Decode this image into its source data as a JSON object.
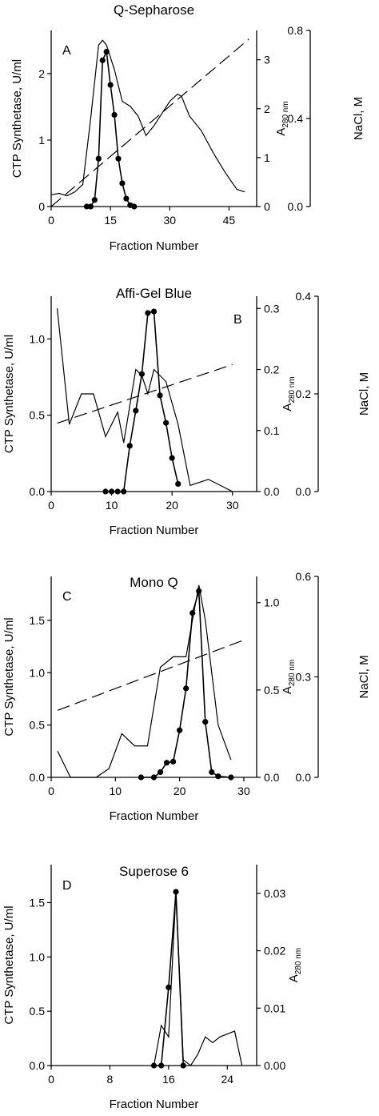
{
  "figure": {
    "panels": [
      "Q-Sepharose",
      "Affi-Gel Blue",
      "Mono Q",
      "Superose 6"
    ]
  },
  "chart_data": [
    {
      "type": "line",
      "panel_label": "A",
      "title": "Q-Sepharose",
      "xlabel": "Fraction Number",
      "ylabel": "CTP Synthetase, U/ml",
      "y2label_main": "A",
      "y2label_sub": "280 nm",
      "y3label": "NaCl, M",
      "xlim": [
        0,
        52
      ],
      "ylim": [
        0,
        2.65
      ],
      "y2lim": [
        0,
        3.6
      ],
      "y3lim": [
        0,
        0.8
      ],
      "xticks": [
        0,
        15,
        30,
        45
      ],
      "yticks": [
        0,
        1,
        2
      ],
      "y2ticks": [
        0,
        1,
        2,
        3
      ],
      "y3ticks": [
        "0.0",
        "0.4",
        "0.8"
      ],
      "grid": false,
      "series": [
        {
          "axis": "y",
          "style": "line-markers",
          "x": [
            9,
            10,
            11,
            12,
            13,
            14,
            15,
            16,
            17,
            18,
            19,
            20,
            21
          ],
          "y": [
            0,
            0,
            0.1,
            0.72,
            2.2,
            2.33,
            1.83,
            1.38,
            0.72,
            0.35,
            0.12,
            0.02,
            0
          ]
        },
        {
          "axis": "y2",
          "style": "solid",
          "x": [
            0,
            2,
            4,
            6,
            8,
            10,
            12,
            13,
            14,
            16,
            18,
            20,
            22,
            24,
            26,
            28,
            30,
            32,
            33,
            35,
            38,
            41,
            44,
            47,
            49
          ],
          "y": [
            0.24,
            0.27,
            0.22,
            0.3,
            0.45,
            1.8,
            3.3,
            3.4,
            3.3,
            2.8,
            2.15,
            2.05,
            1.85,
            1.45,
            1.65,
            1.9,
            2.15,
            2.3,
            2.25,
            1.85,
            1.55,
            1.1,
            0.7,
            0.35,
            0.3
          ]
        },
        {
          "axis": "y3",
          "style": "dashed",
          "x": [
            0,
            50
          ],
          "y": [
            0.0,
            0.76
          ]
        }
      ]
    },
    {
      "type": "line",
      "panel_label": "B",
      "title": "Affi-Gel Blue",
      "xlabel": "Fraction Number",
      "ylabel": "CTP Synthetase, U/ml",
      "y2label_main": "A",
      "y2label_sub": "280 nm",
      "y3label": "NaCl, M",
      "xlim": [
        0,
        34
      ],
      "ylim": [
        0,
        1.28
      ],
      "y2lim": [
        0,
        0.32
      ],
      "y3lim": [
        0,
        0.4
      ],
      "xticks": [
        0,
        10,
        20,
        30
      ],
      "yticks": [
        "0.0",
        "0.5",
        "1.0"
      ],
      "y2ticks": [
        "0.0",
        "0.1",
        "0.2",
        "0.3"
      ],
      "y3ticks": [
        "0.0",
        "0.2",
        "0.4"
      ],
      "grid": false,
      "series": [
        {
          "axis": "y",
          "style": "line-markers",
          "x": [
            9,
            10,
            11,
            12,
            13,
            14,
            15,
            16,
            17,
            18,
            19,
            20,
            21
          ],
          "y": [
            0,
            0,
            0,
            0,
            0.3,
            0.53,
            0.77,
            1.17,
            1.18,
            0.63,
            0.45,
            0.22,
            0.05
          ]
        },
        {
          "axis": "y2",
          "style": "solid",
          "x": [
            1,
            3,
            5,
            7,
            9,
            11,
            12,
            14,
            15,
            16,
            17,
            19,
            21,
            23,
            26,
            30
          ],
          "y": [
            0.3,
            0.11,
            0.16,
            0.16,
            0.09,
            0.13,
            0.08,
            0.2,
            0.19,
            0.16,
            0.2,
            0.18,
            0.11,
            0.01,
            0.02,
            0.0
          ]
        },
        {
          "axis": "y3",
          "style": "dashed",
          "x": [
            1,
            30
          ],
          "y": [
            0.14,
            0.26
          ]
        }
      ]
    },
    {
      "type": "line",
      "panel_label": "C",
      "title": "Mono Q",
      "xlabel": "Fraction Number",
      "ylabel": "CTP Synthetase, U/ml",
      "y2label_main": "A",
      "y2label_sub": "280 nm",
      "y3label": "NaCl, M",
      "xlim": [
        0,
        32
      ],
      "ylim": [
        0,
        1.92
      ],
      "y2lim": [
        0,
        1.15
      ],
      "y3lim": [
        0,
        0.6
      ],
      "xticks": [
        0,
        10,
        20,
        30
      ],
      "yticks": [
        "0.0",
        "0.5",
        "1.0",
        "1.5"
      ],
      "y2ticks": [
        "0.0",
        "0.5",
        "1.0"
      ],
      "y3ticks": [
        "0.0",
        "0.3",
        "0.6"
      ],
      "grid": false,
      "series": [
        {
          "axis": "y",
          "style": "line-markers",
          "x": [
            14,
            16,
            17,
            18,
            19,
            20,
            21,
            22,
            23,
            24,
            25,
            26,
            28
          ],
          "y": [
            0,
            0,
            0.05,
            0.14,
            0.15,
            0.45,
            0.85,
            1.57,
            1.78,
            0.53,
            0.05,
            0.01,
            0
          ]
        },
        {
          "axis": "y2",
          "style": "solid",
          "x": [
            1,
            3,
            5,
            7,
            9,
            11,
            13,
            15,
            17,
            19,
            21,
            22,
            23,
            24,
            26,
            28
          ],
          "y": [
            0.15,
            0.0,
            0.0,
            0.0,
            0.05,
            0.25,
            0.18,
            0.18,
            0.63,
            0.69,
            0.69,
            0.9,
            1.1,
            0.9,
            0.3,
            0.1
          ]
        },
        {
          "axis": "y3",
          "style": "dashed",
          "x": [
            1,
            30
          ],
          "y": [
            0.2,
            0.41
          ]
        }
      ]
    },
    {
      "type": "line",
      "panel_label": "D",
      "title": "Superose 6",
      "xlabel": "Fraction Number",
      "ylabel": "CTP Synthetase, U/ml",
      "y2label_main": "A",
      "y2label_sub": "280 nm",
      "xlim": [
        0,
        28
      ],
      "ylim": [
        0,
        1.85
      ],
      "y2lim": [
        0,
        0.035
      ],
      "xticks": [
        0,
        8,
        16,
        24
      ],
      "yticks": [
        "0.0",
        "0.5",
        "1.0",
        "1.5"
      ],
      "y2ticks": [
        "0.00",
        "0.01",
        "0.02",
        "0.03"
      ],
      "grid": false,
      "series": [
        {
          "axis": "y",
          "style": "line-markers",
          "x": [
            14,
            15,
            16,
            17,
            18
          ],
          "y": [
            0,
            0,
            0.72,
            1.6,
            0
          ]
        },
        {
          "axis": "y2",
          "style": "solid",
          "x": [
            14,
            15,
            16,
            17,
            18,
            19,
            20,
            21,
            22,
            23,
            24,
            25,
            26
          ],
          "y": [
            0.0,
            0.007,
            0.005,
            0.03,
            0.001,
            0.0,
            0.002,
            0.005,
            0.004,
            0.005,
            0.0055,
            0.006,
            0.0
          ]
        }
      ]
    }
  ]
}
